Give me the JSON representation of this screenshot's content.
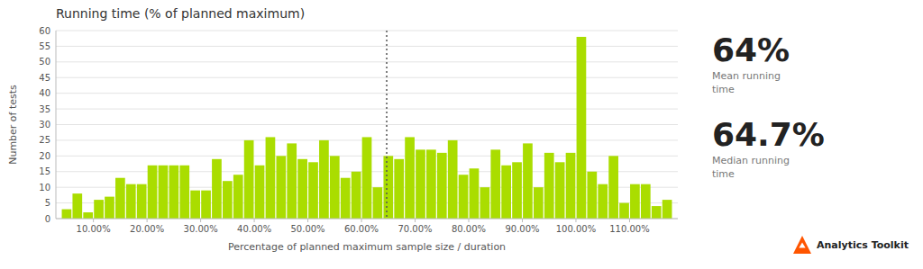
{
  "chart_data": {
    "type": "bar",
    "title": "Running time (% of planned maximum)",
    "x_label": "Percentage of planned maximum sample size / duration",
    "y_label": "Number of tests",
    "color": "#aadd00",
    "grid": true,
    "x": [
      5,
      7,
      9,
      11,
      13,
      15,
      17,
      19,
      21,
      23,
      25,
      27,
      29,
      31,
      33,
      35,
      37,
      39,
      41,
      43,
      45,
      47,
      49,
      51,
      53,
      55,
      57,
      59,
      61,
      63,
      65,
      67,
      69,
      71,
      73,
      75,
      77,
      79,
      81,
      83,
      85,
      87,
      89,
      91,
      93,
      95,
      97,
      99,
      101,
      103,
      105,
      107,
      109,
      111,
      113,
      115,
      117
    ],
    "values": [
      3,
      8,
      2,
      6,
      7,
      13,
      11,
      11,
      17,
      17,
      17,
      17,
      9,
      9,
      19,
      12,
      14,
      25,
      17,
      26,
      20,
      24,
      19,
      18,
      25,
      20,
      13,
      15,
      26,
      10,
      20,
      19,
      26,
      22,
      22,
      21,
      25,
      14,
      16,
      10,
      22,
      17,
      18,
      24,
      10,
      21,
      18,
      21,
      58,
      15,
      11,
      20,
      5,
      11,
      11,
      4,
      6
    ],
    "xlim": [
      3,
      119
    ],
    "xticks": [
      {
        "value": 10,
        "label": "10.00%"
      },
      {
        "value": 20,
        "label": "20.00%"
      },
      {
        "value": 30,
        "label": "30.00%"
      },
      {
        "value": 40,
        "label": "40.00%"
      },
      {
        "value": 50,
        "label": "50.00%"
      },
      {
        "value": 60,
        "label": "60.00%"
      },
      {
        "value": 70,
        "label": "70.00%"
      },
      {
        "value": 80,
        "label": "80.00%"
      },
      {
        "value": 90,
        "label": "90.00%"
      },
      {
        "value": 100,
        "label": "100.00%"
      },
      {
        "value": 110,
        "label": "110.00%"
      }
    ],
    "ylim": [
      0,
      60
    ],
    "yticks": [
      0,
      5,
      10,
      15,
      20,
      25,
      30,
      35,
      40,
      45,
      50,
      55,
      60
    ],
    "reference_lines": [
      {
        "x": 64.7,
        "color": "#555555",
        "line_style": "dotted"
      }
    ],
    "stats": [
      {
        "value": 64,
        "value_label": "64%",
        "label": "Mean running\ntime"
      },
      {
        "value": 64.7,
        "value_label": "64.7%",
        "label": "Median running\ntime"
      }
    ],
    "logo": {
      "text": "Analytics Toolkit",
      "color": "#ff5500"
    }
  }
}
